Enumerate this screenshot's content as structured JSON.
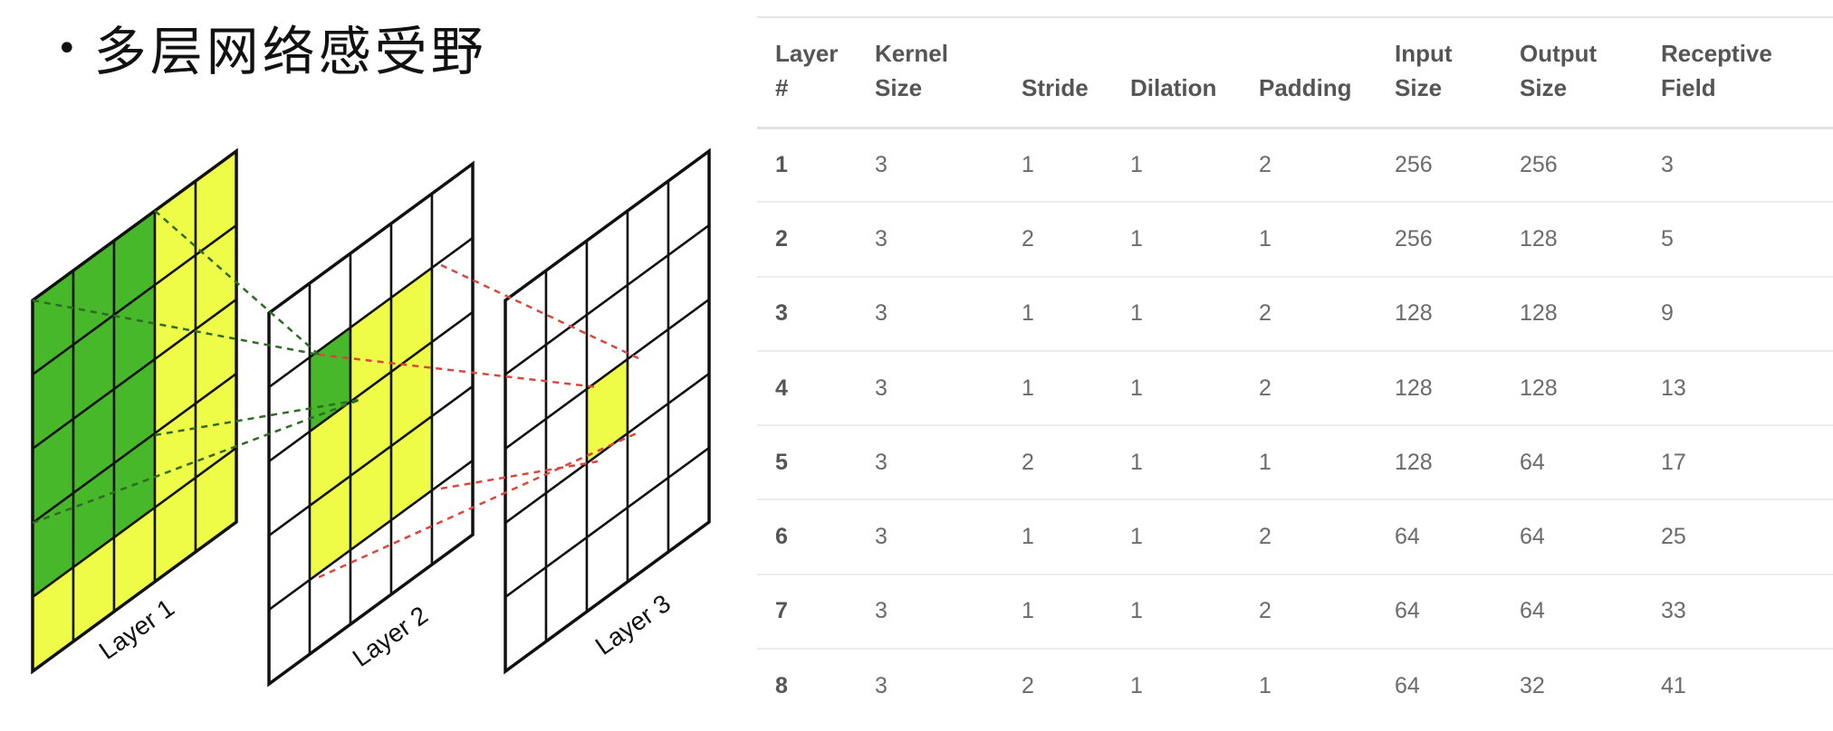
{
  "title": {
    "bullet": "•",
    "text": "多层网络感受野"
  },
  "diagram": {
    "layer_labels": [
      "Layer 1",
      "Layer 2",
      "Layer 3"
    ],
    "colors": {
      "green": "#46b82a",
      "yellow": "#eefc47",
      "grid": "#111111",
      "green_dash": "#2e6b24",
      "red_dash": "#d9463d"
    }
  },
  "table": {
    "headers": [
      [
        "Layer",
        "#"
      ],
      [
        "Kernel",
        "Size"
      ],
      [
        "Stride"
      ],
      [
        "Dilation"
      ],
      [
        "Padding"
      ],
      [
        "Input",
        "Size"
      ],
      [
        "Output",
        "Size"
      ],
      [
        "Receptive",
        "Field"
      ]
    ],
    "rows": [
      [
        "1",
        "3",
        "1",
        "1",
        "2",
        "256",
        "256",
        "3"
      ],
      [
        "2",
        "3",
        "2",
        "1",
        "1",
        "256",
        "128",
        "5"
      ],
      [
        "3",
        "3",
        "1",
        "1",
        "2",
        "128",
        "128",
        "9"
      ],
      [
        "4",
        "3",
        "1",
        "1",
        "2",
        "128",
        "128",
        "13"
      ],
      [
        "5",
        "3",
        "2",
        "1",
        "1",
        "128",
        "64",
        "17"
      ],
      [
        "6",
        "3",
        "1",
        "1",
        "2",
        "64",
        "64",
        "25"
      ],
      [
        "7",
        "3",
        "1",
        "1",
        "2",
        "64",
        "64",
        "33"
      ],
      [
        "8",
        "3",
        "2",
        "1",
        "1",
        "64",
        "32",
        "41"
      ]
    ]
  }
}
